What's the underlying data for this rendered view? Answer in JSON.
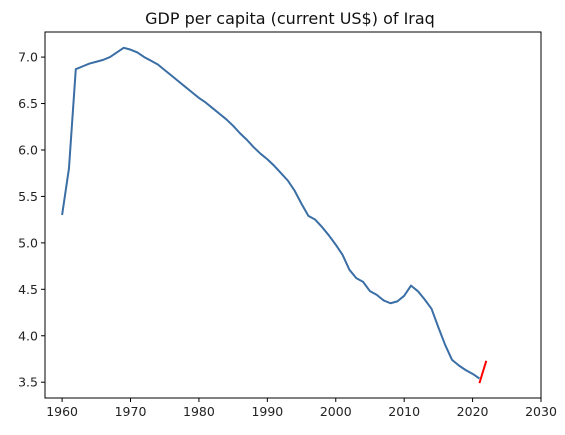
{
  "chart_data": {
    "type": "line",
    "title": "GDP per capita (current US$) of Iraq",
    "xlabel": "",
    "ylabel": "",
    "xlim": [
      1957.5,
      2030
    ],
    "ylim": [
      3.33,
      7.27
    ],
    "grid": false,
    "x_ticks": [
      1960,
      1970,
      1980,
      1990,
      2000,
      2010,
      2020,
      2030
    ],
    "y_ticks": [
      "3.5",
      "4.0",
      "4.5",
      "5.0",
      "5.5",
      "6.0",
      "6.5",
      "7.0"
    ],
    "series": [
      {
        "color": "#3a6ea5",
        "points": [
          [
            1960,
            5.3
          ],
          [
            1961,
            5.8
          ],
          [
            1962,
            6.87
          ],
          [
            1963,
            6.9
          ],
          [
            1964,
            6.93
          ],
          [
            1965,
            6.95
          ],
          [
            1966,
            6.97
          ],
          [
            1967,
            7.0
          ],
          [
            1968,
            7.05
          ],
          [
            1969,
            7.1
          ],
          [
            1970,
            7.08
          ],
          [
            1971,
            7.05
          ],
          [
            1972,
            7.0
          ],
          [
            1973,
            6.96
          ],
          [
            1974,
            6.92
          ],
          [
            1975,
            6.86
          ],
          [
            1976,
            6.8
          ],
          [
            1977,
            6.74
          ],
          [
            1978,
            6.68
          ],
          [
            1979,
            6.62
          ],
          [
            1980,
            6.56
          ],
          [
            1981,
            6.51
          ],
          [
            1982,
            6.45
          ],
          [
            1983,
            6.39
          ],
          [
            1984,
            6.33
          ],
          [
            1985,
            6.26
          ],
          [
            1986,
            6.18
          ],
          [
            1987,
            6.11
          ],
          [
            1988,
            6.03
          ],
          [
            1989,
            5.96
          ],
          [
            1990,
            5.9
          ],
          [
            1991,
            5.83
          ],
          [
            1992,
            5.75
          ],
          [
            1993,
            5.67
          ],
          [
            1994,
            5.56
          ],
          [
            1995,
            5.42
          ],
          [
            1996,
            5.29
          ],
          [
            1997,
            5.25
          ],
          [
            1998,
            5.17
          ],
          [
            1999,
            5.08
          ],
          [
            2000,
            4.98
          ],
          [
            2001,
            4.87
          ],
          [
            2002,
            4.71
          ],
          [
            2003,
            4.62
          ],
          [
            2004,
            4.58
          ],
          [
            2005,
            4.48
          ],
          [
            2006,
            4.44
          ],
          [
            2007,
            4.38
          ],
          [
            2008,
            4.35
          ],
          [
            2009,
            4.37
          ],
          [
            2010,
            4.43
          ],
          [
            2011,
            4.54
          ],
          [
            2012,
            4.48
          ],
          [
            2013,
            4.39
          ],
          [
            2014,
            4.29
          ],
          [
            2015,
            4.09
          ],
          [
            2016,
            3.9
          ],
          [
            2017,
            3.74
          ],
          [
            2018,
            3.68
          ],
          [
            2019,
            3.63
          ],
          [
            2020,
            3.59
          ],
          [
            2021,
            3.54
          ]
        ]
      },
      {
        "color": "#ff0000",
        "points": [
          [
            2021,
            3.49
          ],
          [
            2022,
            3.73
          ]
        ]
      }
    ]
  }
}
